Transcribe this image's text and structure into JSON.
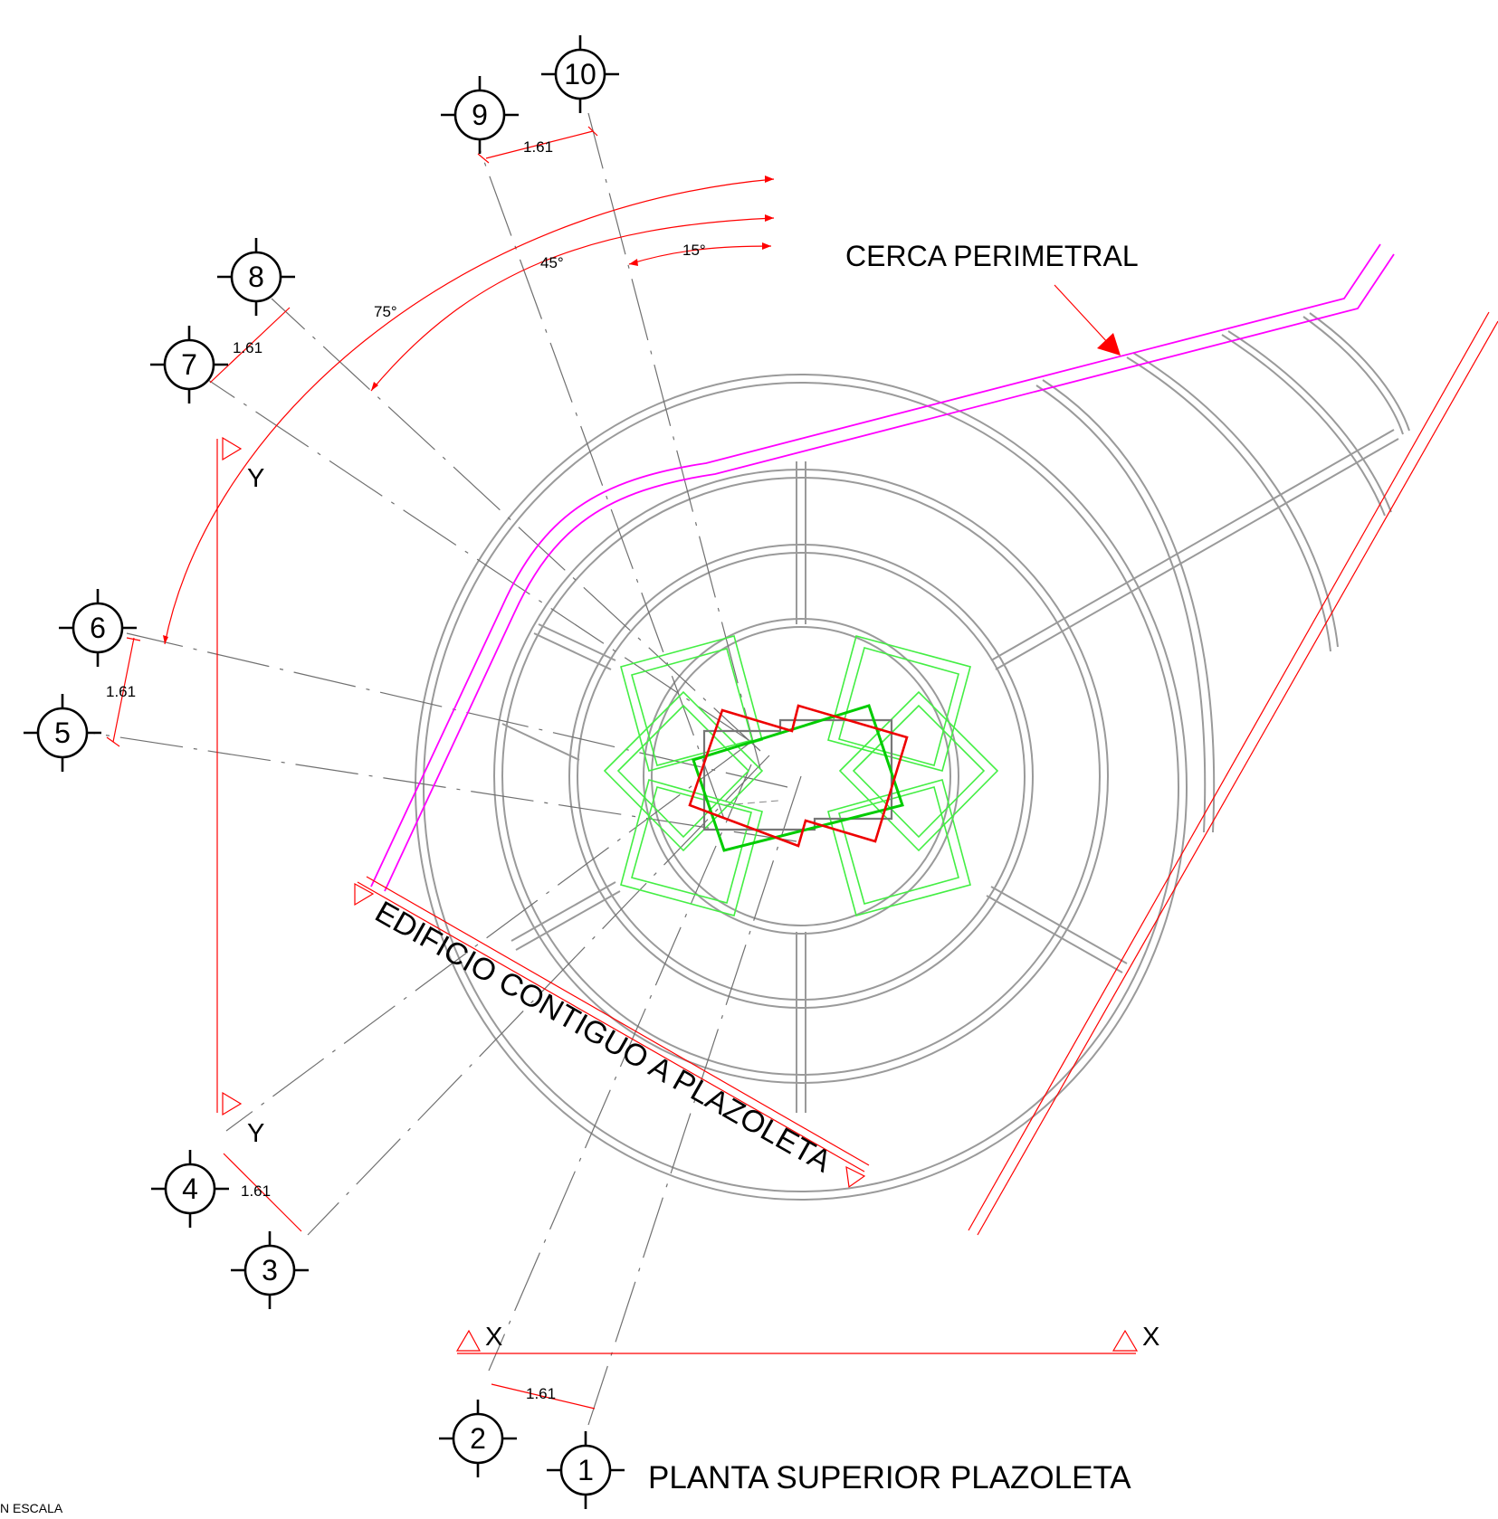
{
  "drawing": {
    "title": "PLANTA SUPERIOR PLAZOLETA",
    "scale_note": "N ESCALA",
    "colors": {
      "background": "#ffffff",
      "geometry": "#9a9a9a",
      "dimension": "#ff0000",
      "fence": "#ff00ff",
      "green_frames": "#33ff33",
      "core_frame": "#00cc00",
      "core_red": "#ee0000",
      "grid_bubble": "#000000"
    }
  },
  "labels": {
    "fence": "CERCA PERIMETRAL",
    "adjacent_building": "EDIFICIO CONTIGUO A PLAZOLETA"
  },
  "grid_axes": [
    "1",
    "2",
    "3",
    "4",
    "5",
    "6",
    "7",
    "8",
    "9",
    "10"
  ],
  "spacing_dimensions": [
    "1.61",
    "1.61",
    "1.61",
    "1.61",
    "1.61"
  ],
  "angle_dimensions": [
    "15°",
    "45°",
    "75°"
  ],
  "section_marks": {
    "x_left": "X",
    "x_right": "X",
    "y_top": "Y",
    "y_bottom": "Y"
  }
}
